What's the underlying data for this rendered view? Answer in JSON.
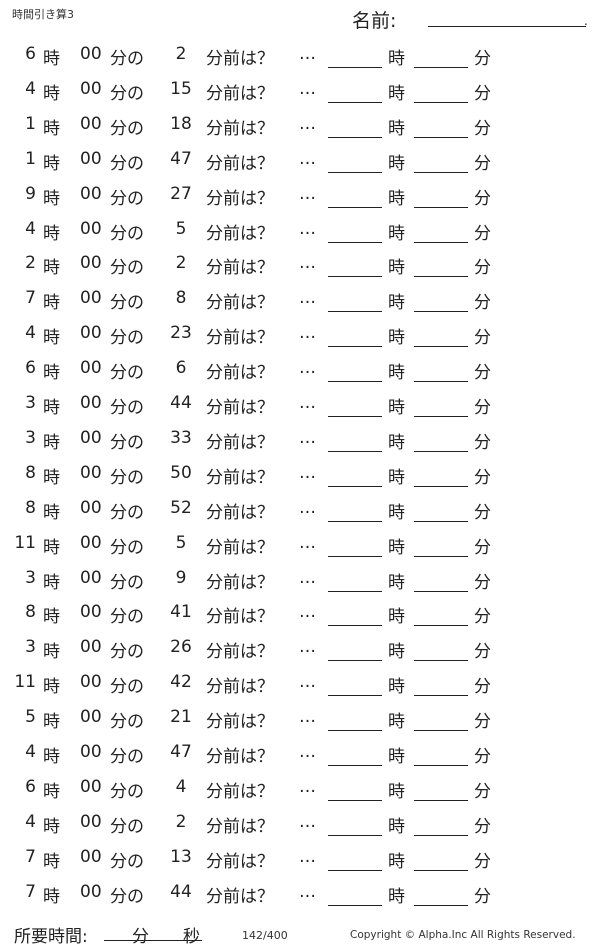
{
  "header": {
    "title": "時間引き算3",
    "name_label": "名前:"
  },
  "problem_labels": {
    "hour": "時",
    "zero_minutes": "00",
    "minutes_of": "分の",
    "before_question": "分前は？",
    "ellipsis": "…",
    "answer_hour": "時",
    "answer_minute": "分"
  },
  "problems": [
    {
      "hour": "6",
      "minus": "2"
    },
    {
      "hour": "4",
      "minus": "15"
    },
    {
      "hour": "1",
      "minus": "18"
    },
    {
      "hour": "1",
      "minus": "47"
    },
    {
      "hour": "9",
      "minus": "27"
    },
    {
      "hour": "4",
      "minus": "5"
    },
    {
      "hour": "2",
      "minus": "2"
    },
    {
      "hour": "7",
      "minus": "8"
    },
    {
      "hour": "4",
      "minus": "23"
    },
    {
      "hour": "6",
      "minus": "6"
    },
    {
      "hour": "3",
      "minus": "44"
    },
    {
      "hour": "3",
      "minus": "33"
    },
    {
      "hour": "8",
      "minus": "50"
    },
    {
      "hour": "8",
      "minus": "52"
    },
    {
      "hour": "11",
      "minus": "5"
    },
    {
      "hour": "3",
      "minus": "9"
    },
    {
      "hour": "8",
      "minus": "41"
    },
    {
      "hour": "3",
      "minus": "26"
    },
    {
      "hour": "11",
      "minus": "42"
    },
    {
      "hour": "5",
      "minus": "21"
    },
    {
      "hour": "4",
      "minus": "47"
    },
    {
      "hour": "6",
      "minus": "4"
    },
    {
      "hour": "4",
      "minus": "2"
    },
    {
      "hour": "7",
      "minus": "13"
    },
    {
      "hour": "7",
      "minus": "44"
    }
  ],
  "footer": {
    "time_label": "所要時間:",
    "minutes": "分",
    "seconds": "秒",
    "page": "142/400",
    "copyright": "Copyright ©  Alpha.Inc All Rights Reserved."
  }
}
